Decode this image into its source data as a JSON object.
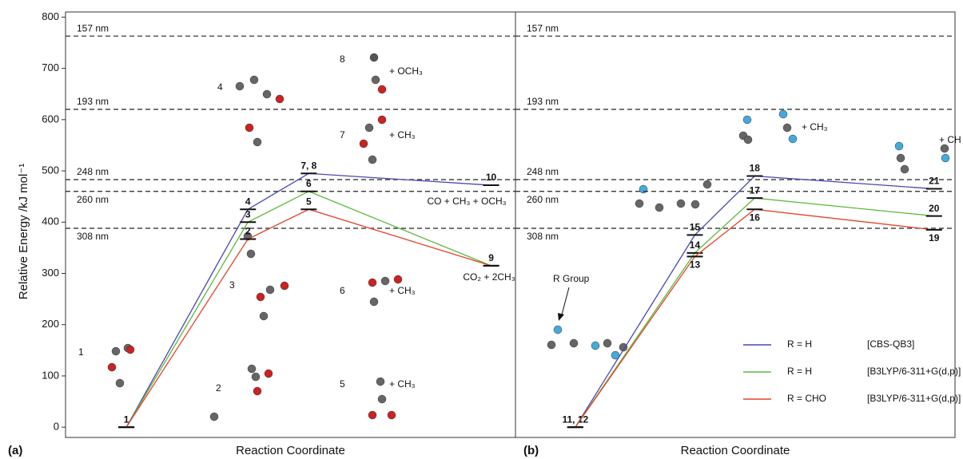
{
  "chart_data": [
    {
      "type": "energy-diagram",
      "panel_label": "(a)",
      "xlabel": "Reaction Coordinate",
      "ylabel": "Relative Energy /kJ mol⁻¹",
      "ylim": [
        -20,
        810
      ],
      "yticks": [
        0,
        100,
        200,
        300,
        400,
        500,
        600,
        700,
        800
      ],
      "xlim": [
        0,
        7.4
      ],
      "hlines": [
        {
          "label": "157 nm",
          "value": 763
        },
        {
          "label": "193 nm",
          "value": 620
        },
        {
          "label": "248 nm",
          "value": 483
        },
        {
          "label": "260 nm",
          "value": 460
        },
        {
          "label": "308 nm",
          "value": 388
        }
      ],
      "series": [
        {
          "name": "R = H",
          "color": "#4a46b0",
          "x": [
            1,
            3,
            4,
            7
          ],
          "values": [
            0,
            425,
            495,
            472
          ],
          "point_labels": [
            "1",
            "4",
            "7, 8",
            "10"
          ]
        },
        {
          "name": "R = H",
          "color": "#5cb83a",
          "x": [
            1,
            3,
            4,
            7
          ],
          "values": [
            0,
            400,
            460,
            315
          ],
          "point_labels": [
            null,
            "3",
            "6",
            null
          ]
        },
        {
          "name": "R = CHO",
          "color": "#e0452b",
          "x": [
            1,
            3,
            4,
            7
          ],
          "values": [
            0,
            367,
            425,
            315
          ],
          "point_labels": [
            null,
            "2",
            "5",
            "9"
          ]
        }
      ],
      "annotations": [
        "4",
        "8",
        "+ OCH₃",
        "7",
        "+ CH₃",
        "3",
        "6",
        "+ CH₃",
        "1",
        "2",
        "5",
        "+ CH₃",
        "CO + CH₃ + OCH₃",
        "CO₂ + 2CH₃"
      ]
    },
    {
      "type": "energy-diagram",
      "panel_label": "(b)",
      "xlabel": "Reaction Coordinate",
      "ylim": [
        -20,
        810
      ],
      "xlim": [
        0,
        7.35
      ],
      "hlines": [
        {
          "label": "157 nm",
          "value": 763
        },
        {
          "label": "193 nm",
          "value": 620
        },
        {
          "label": "248 nm",
          "value": 483
        },
        {
          "label": "260 nm",
          "value": 460
        },
        {
          "label": "308 nm",
          "value": 388
        }
      ],
      "series": [
        {
          "name": "R = H",
          "method": "[CBS-QB3]",
          "color": "#4a46b0",
          "x": [
            1,
            3,
            4,
            7
          ],
          "values": [
            0,
            375,
            490,
            465
          ],
          "point_labels": [
            "11, 12",
            "15",
            "18",
            "21"
          ]
        },
        {
          "name": "R = H",
          "method": "[B3LYP/6-311+G(d,p)]",
          "color": "#5cb83a",
          "x": [
            1,
            3,
            4,
            7
          ],
          "values": [
            0,
            340,
            447,
            412
          ],
          "point_labels": [
            null,
            "14",
            "17",
            "20"
          ]
        },
        {
          "name": "R = CHO",
          "method": "[B3LYP/6-311+G(d,p)]",
          "color": "#e0452b",
          "x": [
            1,
            3,
            4,
            7
          ],
          "values": [
            0,
            333,
            425,
            385
          ],
          "point_labels": [
            null,
            "13",
            "16",
            "19"
          ]
        }
      ],
      "legend": "lower right",
      "annotations": [
        "R Group",
        "+ CH₃",
        "+ CH"
      ]
    }
  ]
}
